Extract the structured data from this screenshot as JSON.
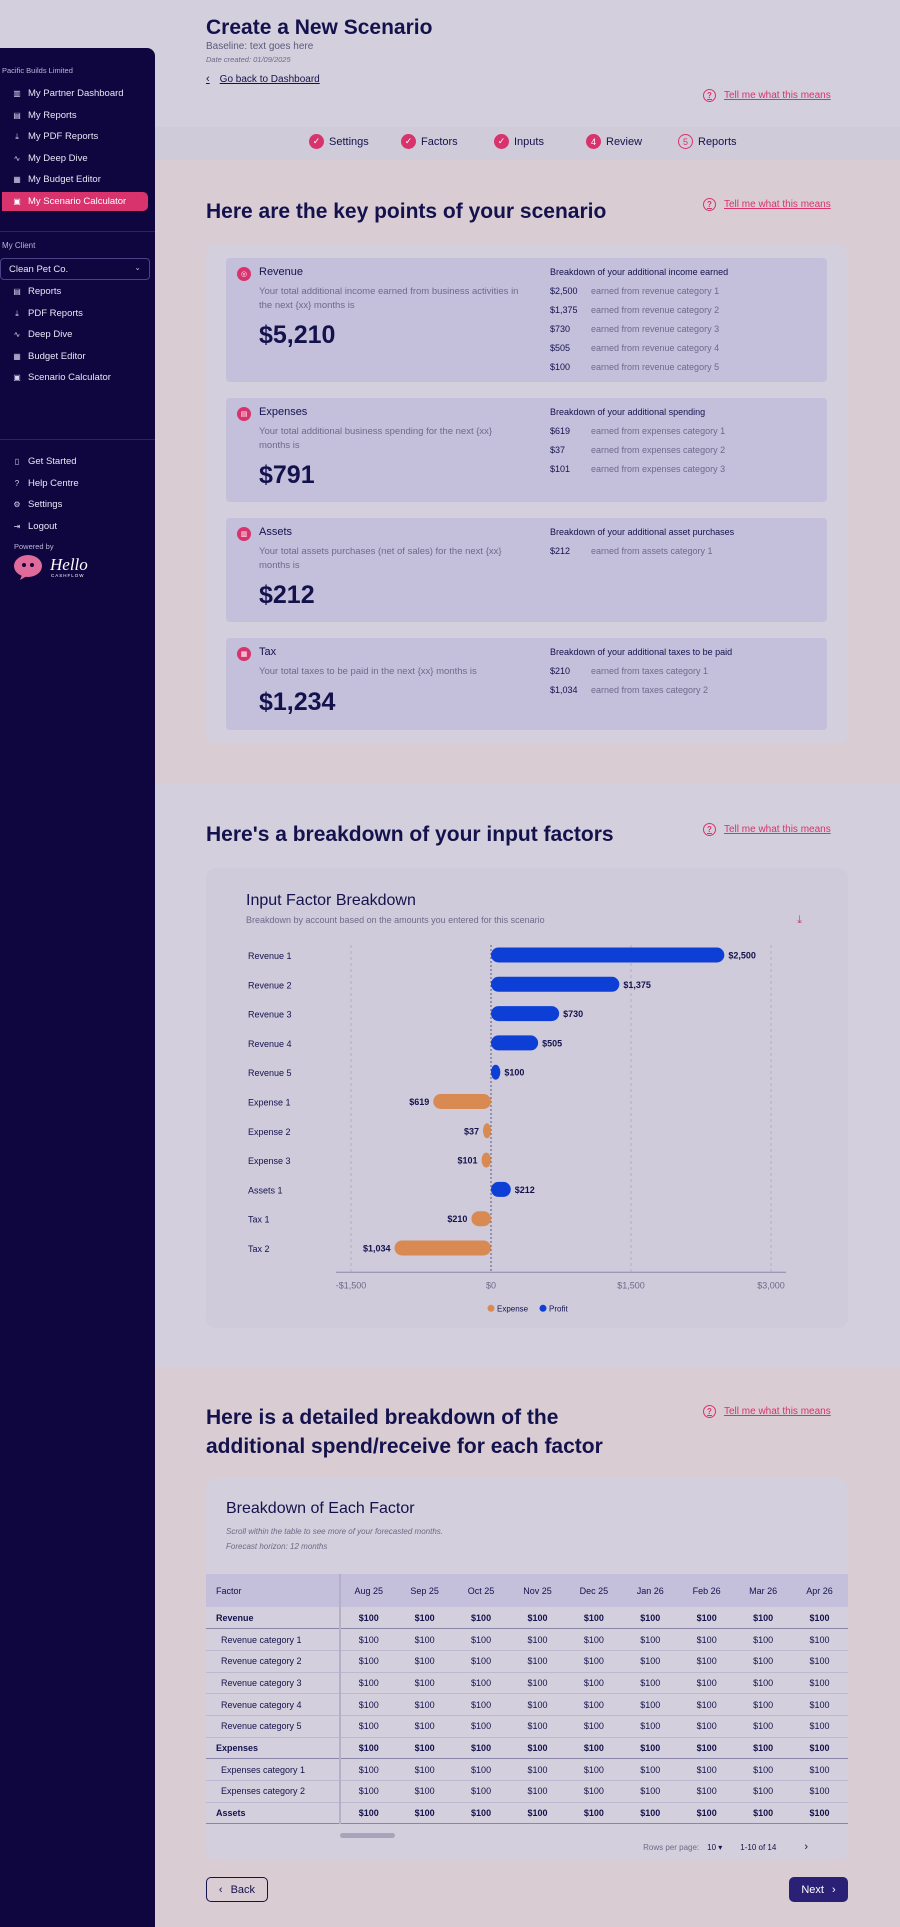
{
  "sidebar": {
    "org": "Pacific Builds Limited",
    "partner_items": [
      {
        "label": "My Partner Dashboard",
        "icon": "building-icon"
      },
      {
        "label": "My Reports",
        "icon": "chart-icon"
      },
      {
        "label": "My PDF Reports",
        "icon": "download-icon"
      },
      {
        "label": "My Deep Dive",
        "icon": "trend-icon"
      },
      {
        "label": "My Budget Editor",
        "icon": "grid-icon"
      },
      {
        "label": "My Scenario Calculator",
        "icon": "calculator-icon",
        "active": true
      }
    ],
    "client_label": "My Client",
    "client_value": "Clean Pet Co.",
    "client_items": [
      {
        "label": "Reports",
        "icon": "chart-icon"
      },
      {
        "label": "PDF Reports",
        "icon": "download-icon"
      },
      {
        "label": "Deep Dive",
        "icon": "trend-icon"
      },
      {
        "label": "Budget Editor",
        "icon": "grid-icon"
      },
      {
        "label": "Scenario Calculator",
        "icon": "calculator-icon"
      }
    ],
    "footer_items": [
      {
        "label": "Get Started",
        "icon": "book-icon"
      },
      {
        "label": "Help Centre",
        "icon": "help-icon"
      },
      {
        "label": "Settings",
        "icon": "gear-icon"
      },
      {
        "label": "Logout",
        "icon": "logout-icon"
      }
    ],
    "powered_by": "Powered by",
    "logo_text": "Hello",
    "logo_sub": "CASHFLOW"
  },
  "header": {
    "title": "Create a New Scenario",
    "baseline": "Baseline: text goes here",
    "date_created": "Date created: 01/09/2025",
    "back_link": "Go back to Dashboard",
    "help_link": "Tell me what this means"
  },
  "steps": [
    {
      "label": "Settings",
      "mark": "✓"
    },
    {
      "label": "Factors",
      "mark": "✓"
    },
    {
      "label": "Inputs",
      "mark": "✓"
    },
    {
      "label": "Review",
      "mark": "4"
    },
    {
      "label": "Reports",
      "mark": "5"
    }
  ],
  "key_points": {
    "heading": "Here are the key points of your scenario",
    "help_link": "Tell me what this means",
    "cards": [
      {
        "title": "Revenue",
        "desc": "Your total additional income earned from business activities in the next {xx} months is",
        "amount": "$5,210",
        "breakdown_title": "Breakdown of your additional income earned",
        "rows": [
          {
            "v": "$2,500",
            "l": "earned from revenue category 1"
          },
          {
            "v": "$1,375",
            "l": "earned from revenue category 2"
          },
          {
            "v": "$730",
            "l": "earned from revenue category 3"
          },
          {
            "v": "$505",
            "l": "earned from revenue category 4"
          },
          {
            "v": "$100",
            "l": "earned from revenue category 5"
          }
        ]
      },
      {
        "title": "Expenses",
        "desc": "Your total additional business spending for the next {xx} months is",
        "amount": "$791",
        "breakdown_title": "Breakdown of your additional spending",
        "rows": [
          {
            "v": "$619",
            "l": "earned from expenses category 1"
          },
          {
            "v": "$37",
            "l": "earned from expenses category 2"
          },
          {
            "v": "$101",
            "l": "earned from expenses category 3"
          }
        ]
      },
      {
        "title": "Assets",
        "desc": "Your total assets purchases (net of sales) for the next {xx} months is",
        "amount": "$212",
        "breakdown_title": "Breakdown of your additional asset purchases",
        "rows": [
          {
            "v": "$212",
            "l": "earned from assets category 1"
          }
        ]
      },
      {
        "title": "Tax",
        "desc": "Your total taxes to be paid in the next {xx} months is",
        "amount": "$1,234",
        "breakdown_title": "Breakdown of your additional taxes to be paid",
        "rows": [
          {
            "v": "$210",
            "l": "earned from taxes category 1"
          },
          {
            "v": "$1,034",
            "l": "earned from taxes category 2"
          }
        ]
      }
    ]
  },
  "factors": {
    "heading": "Here's a breakdown of your input factors",
    "help_link": "Tell me what this means"
  },
  "chart_data": {
    "type": "bar",
    "orientation": "horizontal",
    "title": "Input Factor Breakdown",
    "subtitle": "Breakdown by account based on the amounts you entered for this scenario",
    "categories": [
      "Revenue 1",
      "Revenue 2",
      "Revenue 3",
      "Revenue 4",
      "Revenue 5",
      "Expense 1",
      "Expense 2",
      "Expense 3",
      "Assets 1",
      "Tax 1",
      "Tax 2"
    ],
    "values": [
      2500,
      1375,
      730,
      505,
      100,
      -619,
      -37,
      -101,
      212,
      -210,
      -1034
    ],
    "data_labels": [
      "$2,500",
      "$1,375",
      "$730",
      "$505",
      "$100",
      "$619",
      "$37",
      "$101",
      "$212",
      "$210",
      "$1,034"
    ],
    "series_kind": [
      "Profit",
      "Profit",
      "Profit",
      "Profit",
      "Profit",
      "Expense",
      "Expense",
      "Expense",
      "Profit",
      "Expense",
      "Expense"
    ],
    "xlim": [
      -1500,
      3000
    ],
    "xticks": [
      -1500,
      0,
      1500,
      3000
    ],
    "xtick_labels": [
      "-$1,500",
      "$0",
      "$1,500",
      "$3,000"
    ],
    "legend": [
      {
        "name": "Expense",
        "color": "#d88a52"
      },
      {
        "name": "Profit",
        "color": "#0d3fd6"
      }
    ],
    "legend_position": "bottom",
    "grid": true
  },
  "detail": {
    "heading_line1": "Here is a detailed breakdown of the",
    "heading_line2": "additional spend/receive for each factor",
    "help_link": "Tell me what this means",
    "table_title": "Breakdown of Each Factor",
    "note1": "Scroll within the table to see more of your forecasted months.",
    "note2": "Forecast horizon: 12 months",
    "columns": [
      "Factor",
      "Aug 25",
      "Sep 25",
      "Oct 25",
      "Nov 25",
      "Dec 25",
      "Jan 26",
      "Feb 26",
      "Mar 26",
      "Apr 26"
    ],
    "rows": [
      {
        "name": "Revenue",
        "cells": [
          "$100",
          "$100",
          "$100",
          "$100",
          "$100",
          "$100",
          "$100",
          "$100",
          "$100"
        ],
        "type": "group"
      },
      {
        "name": "Revenue category 1",
        "cells": [
          "$100",
          "$100",
          "$100",
          "$100",
          "$100",
          "$100",
          "$100",
          "$100",
          "$100"
        ],
        "type": "sub"
      },
      {
        "name": "Revenue category 2",
        "cells": [
          "$100",
          "$100",
          "$100",
          "$100",
          "$100",
          "$100",
          "$100",
          "$100",
          "$100"
        ],
        "type": "sub"
      },
      {
        "name": "Revenue category 3",
        "cells": [
          "$100",
          "$100",
          "$100",
          "$100",
          "$100",
          "$100",
          "$100",
          "$100",
          "$100"
        ],
        "type": "sub"
      },
      {
        "name": "Revenue category 4",
        "cells": [
          "$100",
          "$100",
          "$100",
          "$100",
          "$100",
          "$100",
          "$100",
          "$100",
          "$100"
        ],
        "type": "sub"
      },
      {
        "name": "Revenue category 5",
        "cells": [
          "$100",
          "$100",
          "$100",
          "$100",
          "$100",
          "$100",
          "$100",
          "$100",
          "$100"
        ],
        "type": "sub"
      },
      {
        "name": "Expenses",
        "cells": [
          "$100",
          "$100",
          "$100",
          "$100",
          "$100",
          "$100",
          "$100",
          "$100",
          "$100"
        ],
        "type": "group"
      },
      {
        "name": "Expenses category 1",
        "cells": [
          "$100",
          "$100",
          "$100",
          "$100",
          "$100",
          "$100",
          "$100",
          "$100",
          "$100"
        ],
        "type": "sub"
      },
      {
        "name": "Expenses category 2",
        "cells": [
          "$100",
          "$100",
          "$100",
          "$100",
          "$100",
          "$100",
          "$100",
          "$100",
          "$100"
        ],
        "type": "sub"
      },
      {
        "name": "Assets",
        "cells": [
          "$100",
          "$100",
          "$100",
          "$100",
          "$100",
          "$100",
          "$100",
          "$100",
          "$100"
        ],
        "type": "group"
      }
    ],
    "rows_per_page_label": "Rows per page:",
    "rows_per_page": "10",
    "page_range": "1-10 of 14"
  },
  "nav": {
    "back": "Back",
    "next": "Next"
  },
  "colors": {
    "accent": "#d8336d",
    "sidebar": "#0f0640",
    "primary": "#2a2075",
    "profit": "#0d3fd6",
    "expense": "#d88a52"
  }
}
